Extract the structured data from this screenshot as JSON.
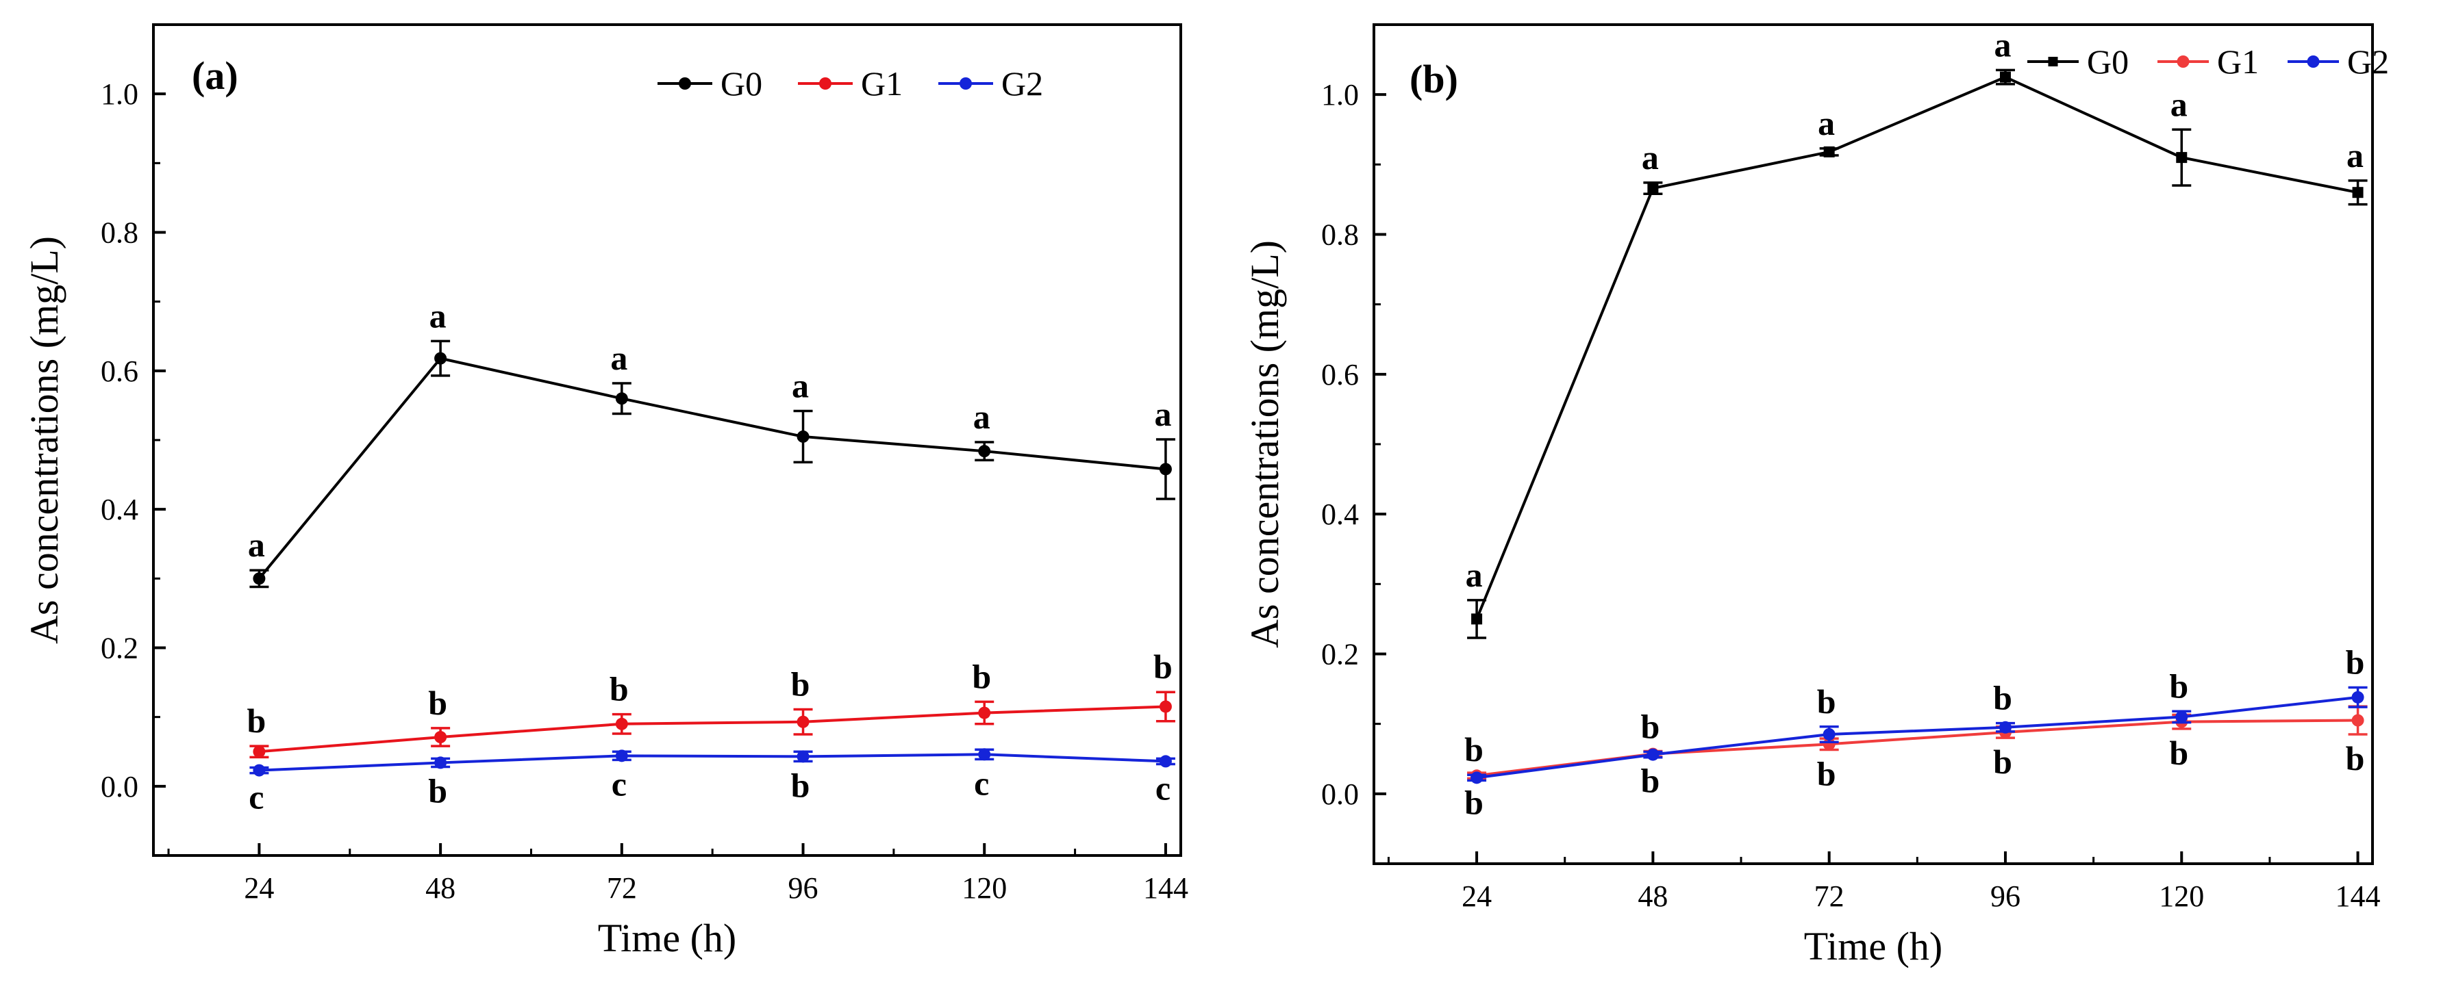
{
  "chart_data": [
    {
      "type": "line",
      "panel_label": "(a)",
      "xlabel": "Time (h)",
      "ylabel": "As concentrations (mg/L)",
      "x": [
        24,
        48,
        72,
        96,
        120,
        144
      ],
      "x_ticks": [
        "24",
        "48",
        "72",
        "96",
        "120",
        "144"
      ],
      "y_ticks": [
        "0.0",
        "0.2",
        "0.4",
        "0.6",
        "0.8",
        "1.0"
      ],
      "xlim": [
        10,
        146
      ],
      "ylim": [
        -0.1,
        1.1
      ],
      "legend_position": "top-right",
      "series": [
        {
          "name": "G0",
          "color": "#000000",
          "marker": "circle",
          "values": [
            0.3,
            0.618,
            0.56,
            0.505,
            0.484,
            0.458
          ],
          "errors": [
            0.012,
            0.025,
            0.022,
            0.037,
            0.013,
            0.043
          ],
          "letters": [
            "a",
            "a",
            "a",
            "a",
            "a",
            "a"
          ],
          "letter_side": "above"
        },
        {
          "name": "G1",
          "color": "#e8141c",
          "marker": "circle",
          "values": [
            0.05,
            0.071,
            0.09,
            0.093,
            0.106,
            0.115
          ],
          "errors": [
            0.008,
            0.013,
            0.014,
            0.018,
            0.016,
            0.021
          ],
          "letters": [
            "b",
            "b",
            "b",
            "b",
            "b",
            "b"
          ],
          "letter_side": "above"
        },
        {
          "name": "G2",
          "color": "#1524d9",
          "marker": "circle",
          "values": [
            0.023,
            0.034,
            0.044,
            0.043,
            0.046,
            0.036
          ],
          "errors": [
            0.004,
            0.006,
            0.006,
            0.007,
            0.007,
            0.004
          ],
          "letters": [
            "c",
            "b",
            "c",
            "b",
            "c",
            "c"
          ],
          "letter_side": "below"
        }
      ]
    },
    {
      "type": "line",
      "panel_label": "(b)",
      "xlabel": "Time (h)",
      "ylabel": "As concentrations (mg/L)",
      "x": [
        24,
        48,
        72,
        96,
        120,
        144
      ],
      "x_ticks": [
        "24",
        "48",
        "72",
        "96",
        "120",
        "144"
      ],
      "y_ticks": [
        "0.0",
        "0.2",
        "0.4",
        "0.6",
        "0.8",
        "1.0"
      ],
      "xlim": [
        10,
        146
      ],
      "ylim": [
        -0.1,
        1.1
      ],
      "legend_position": "top-right",
      "series": [
        {
          "name": "G0",
          "color": "#000000",
          "marker": "square",
          "values": [
            0.25,
            0.866,
            0.918,
            1.025,
            0.91,
            0.86
          ],
          "errors": [
            0.027,
            0.008,
            0.005,
            0.01,
            0.04,
            0.017
          ],
          "letters": [
            "a",
            "a",
            "a",
            "a",
            "a",
            "a"
          ],
          "letter_side": "above"
        },
        {
          "name": "G1",
          "color": "#f03c3c",
          "marker": "circle",
          "values": [
            0.026,
            0.057,
            0.071,
            0.088,
            0.103,
            0.105
          ],
          "errors": [
            0.004,
            0.004,
            0.008,
            0.008,
            0.01,
            0.02
          ],
          "letters": [
            "b",
            "b",
            "b",
            "b",
            "b",
            "b"
          ],
          "letter_side": "below"
        },
        {
          "name": "G2",
          "color": "#1524d9",
          "marker": "circle",
          "values": [
            0.023,
            0.056,
            0.085,
            0.095,
            0.11,
            0.138
          ],
          "errors": [
            0.004,
            0.004,
            0.011,
            0.006,
            0.008,
            0.014
          ],
          "letters": [
            "b",
            "b",
            "b",
            "b",
            "b",
            "b"
          ],
          "letter_side": "above"
        }
      ]
    }
  ]
}
